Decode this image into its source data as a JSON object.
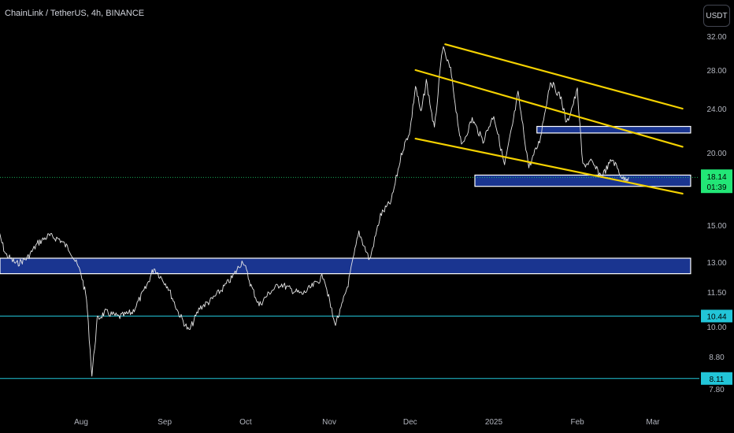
{
  "header": {
    "symbol_title": "ChainLink / TetherUS, 4h, BINANCE"
  },
  "toolbar": {
    "currency_label": "USDT"
  },
  "colors": {
    "price": "#e6e6e6",
    "channel": "#f5d200",
    "zone_fill": "#1a3590",
    "zone_border": "#ffffff",
    "level_line": "#22c5d8",
    "current_price": "#22e676",
    "axis_text": "#b2b5be"
  },
  "chart_data": {
    "type": "line",
    "title": "ChainLink / TetherUS, 4h, BINANCE",
    "xlabel": "",
    "ylabel": "",
    "y_scale": "log",
    "y_tick_labels": [
      "32.00",
      "28.00",
      "24.00",
      "20.00",
      "15.00",
      "13.00",
      "11.50",
      "10.00",
      "8.80",
      "7.80"
    ],
    "x_tick_labels": [
      "Aug",
      "Sep",
      "Oct",
      "Nov",
      "Dec",
      "2025",
      "Feb",
      "Mar"
    ],
    "current_price": {
      "value": "18.14",
      "countdown": "01:39"
    },
    "levels": [
      {
        "name": "support-10-44",
        "value": 10.44,
        "label": "10.44"
      },
      {
        "name": "support-8-11",
        "value": 8.11,
        "label": "8.11"
      }
    ],
    "zones": [
      {
        "name": "zone-13",
        "low": 12.4,
        "high": 13.2,
        "from": "2024-07-01",
        "to": "2025-03-15"
      },
      {
        "name": "zone-22",
        "low": 21.7,
        "high": 22.3,
        "from": "2025-01-17",
        "to": "2025-03-15"
      },
      {
        "name": "zone-18",
        "low": 17.5,
        "high": 18.3,
        "from": "2024-12-25",
        "to": "2025-03-15"
      }
    ],
    "channel_lines": [
      {
        "name": "upper-channel-line",
        "from": [
          "2024-12-14",
          31.0
        ],
        "to": [
          "2025-03-12",
          24.0
        ]
      },
      {
        "name": "middle-channel-line",
        "from": [
          "2024-12-03",
          28.0
        ],
        "to": [
          "2025-03-12",
          20.5
        ]
      },
      {
        "name": "lower-channel-line",
        "from": [
          "2024-12-03",
          21.2
        ],
        "to": [
          "2025-03-12",
          17.0
        ]
      }
    ],
    "series": [
      {
        "name": "LINKUSDT",
        "x": [
          "2024-07-01",
          "2024-07-04",
          "2024-07-08",
          "2024-07-12",
          "2024-07-16",
          "2024-07-20",
          "2024-07-24",
          "2024-07-28",
          "2024-08-01",
          "2024-08-03",
          "2024-08-05",
          "2024-08-07",
          "2024-08-10",
          "2024-08-15",
          "2024-08-20",
          "2024-08-25",
          "2024-08-28",
          "2024-09-02",
          "2024-09-06",
          "2024-09-10",
          "2024-09-14",
          "2024-09-18",
          "2024-09-22",
          "2024-09-26",
          "2024-09-30",
          "2024-10-03",
          "2024-10-06",
          "2024-10-10",
          "2024-10-14",
          "2024-10-18",
          "2024-10-22",
          "2024-10-26",
          "2024-10-30",
          "2024-11-03",
          "2024-11-05",
          "2024-11-08",
          "2024-11-12",
          "2024-11-16",
          "2024-11-20",
          "2024-11-24",
          "2024-11-28",
          "2024-12-01",
          "2024-12-03",
          "2024-12-05",
          "2024-12-07",
          "2024-12-10",
          "2024-12-13",
          "2024-12-16",
          "2024-12-18",
          "2024-12-20",
          "2024-12-24",
          "2024-12-28",
          "2025-01-01",
          "2025-01-05",
          "2025-01-08",
          "2025-01-10",
          "2025-01-14",
          "2025-01-18",
          "2025-01-22",
          "2025-01-26",
          "2025-01-28",
          "2025-02-01",
          "2025-02-03",
          "2025-02-06",
          "2025-02-10",
          "2025-02-14",
          "2025-02-18",
          "2025-02-20"
        ],
        "values": [
          14.8,
          13.4,
          12.9,
          13.2,
          14.0,
          14.4,
          14.2,
          13.6,
          12.4,
          11.2,
          8.2,
          10.3,
          10.6,
          10.4,
          10.6,
          11.7,
          12.7,
          11.8,
          10.6,
          9.8,
          10.8,
          11.1,
          11.6,
          12.2,
          13.1,
          11.8,
          10.9,
          11.5,
          11.9,
          11.6,
          11.4,
          11.8,
          12.3,
          10.1,
          10.6,
          11.9,
          14.6,
          13.1,
          15.6,
          16.5,
          20.1,
          22.0,
          26.3,
          23.5,
          26.8,
          22.0,
          30.6,
          28.0,
          24.0,
          20.5,
          23.0,
          21.0,
          23.4,
          19.0,
          22.5,
          25.5,
          18.9,
          21.0,
          26.8,
          25.0,
          22.5,
          25.8,
          19.0,
          19.3,
          18.2,
          19.5,
          18.0,
          18.14
        ]
      }
    ]
  }
}
